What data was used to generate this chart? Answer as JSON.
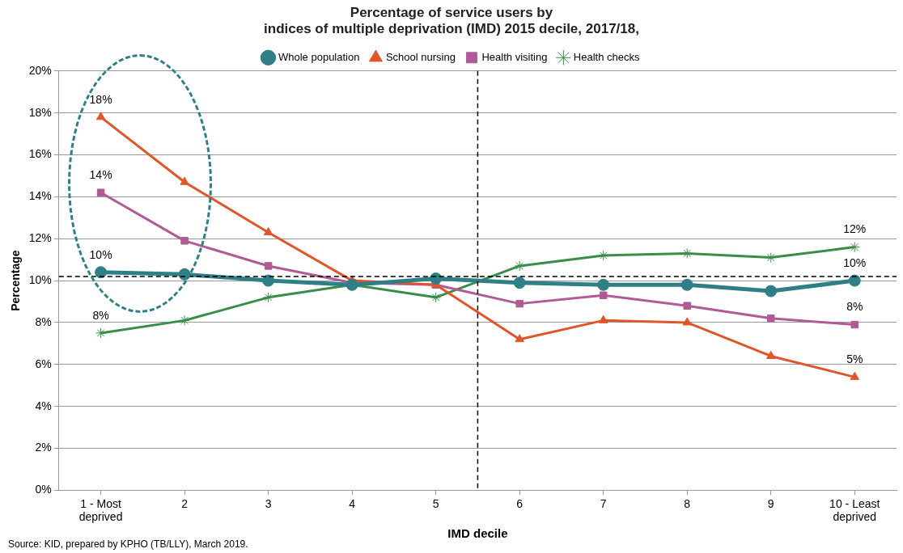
{
  "chart_data": {
    "type": "line",
    "title": [
      "Percentage of service users by",
      "indices of multiple deprivation (IMD) 2015 decile, 2017/18,"
    ],
    "xlabel": "IMD decile",
    "ylabel": "Percentage",
    "x": [
      1,
      2,
      3,
      4,
      5,
      6,
      7,
      8,
      9,
      10
    ],
    "xlim": [
      0.5,
      10.5
    ],
    "xticks": [
      {
        "value": 1,
        "label": "1 - Most deprived"
      },
      2,
      3,
      4,
      5,
      6,
      7,
      8,
      9,
      {
        "value": 10,
        "label": "10 - Least deprived"
      }
    ],
    "series": [
      {
        "name": "Whole population",
        "color": "#2e7f86",
        "marker": "circle",
        "values": [
          10.4,
          10.3,
          10.0,
          9.8,
          10.1,
          9.9,
          9.8,
          9.8,
          9.5,
          10.0
        ],
        "value_labels": [
          "10%",
          null,
          null,
          null,
          null,
          null,
          null,
          null,
          null,
          "10%"
        ]
      },
      {
        "name": "School nursing",
        "color": "#e0562b",
        "marker": "triangle",
        "values": [
          17.8,
          14.7,
          12.3,
          10.0,
          9.8,
          7.2,
          8.1,
          8.0,
          6.4,
          5.4
        ],
        "value_labels": [
          "18%",
          null,
          null,
          null,
          null,
          null,
          null,
          null,
          null,
          "5%"
        ]
      },
      {
        "name": "Health visiting",
        "color": "#b05a96",
        "marker": "square",
        "values": [
          14.2,
          11.9,
          10.7,
          9.9,
          9.8,
          8.9,
          9.3,
          8.8,
          8.2,
          7.9
        ],
        "value_labels": [
          "14%",
          null,
          null,
          null,
          null,
          null,
          null,
          null,
          null,
          "8%"
        ]
      },
      {
        "name": "Health checks",
        "color": "#3a8d48",
        "marker": "cross",
        "values": [
          7.5,
          8.1,
          9.2,
          9.8,
          9.2,
          10.7,
          11.2,
          11.3,
          11.1,
          11.6
        ],
        "value_labels": [
          "8%",
          null,
          null,
          null,
          null,
          null,
          null,
          null,
          null,
          "12%"
        ]
      }
    ],
    "ylim": [
      0,
      20
    ],
    "yticks": [
      {
        "value": 0,
        "label": "0%"
      },
      {
        "value": 2,
        "label": "2%"
      },
      {
        "value": 4,
        "label": "4%"
      },
      {
        "value": 6,
        "label": "6%"
      },
      {
        "value": 8,
        "label": "8%"
      },
      {
        "value": 10,
        "label": "10%"
      },
      {
        "value": 12,
        "label": "12%"
      },
      {
        "value": 14,
        "label": "14%"
      },
      {
        "value": 16,
        "label": "16%"
      },
      {
        "value": 18,
        "label": "18%"
      },
      {
        "value": 20,
        "label": "20%"
      }
    ],
    "grid": "y",
    "legend": "top",
    "line_style": "solid",
    "ref_lines": [
      {
        "axis": "y",
        "value": 10.2,
        "color": "#000000",
        "line_style": "dashed"
      },
      {
        "axis": "x",
        "value": 5.5,
        "color": "#000000",
        "line_style": "dashed"
      }
    ],
    "annotations": [
      "Source: KID, prepared by KPHO (TB/LLY), March 2019."
    ]
  }
}
